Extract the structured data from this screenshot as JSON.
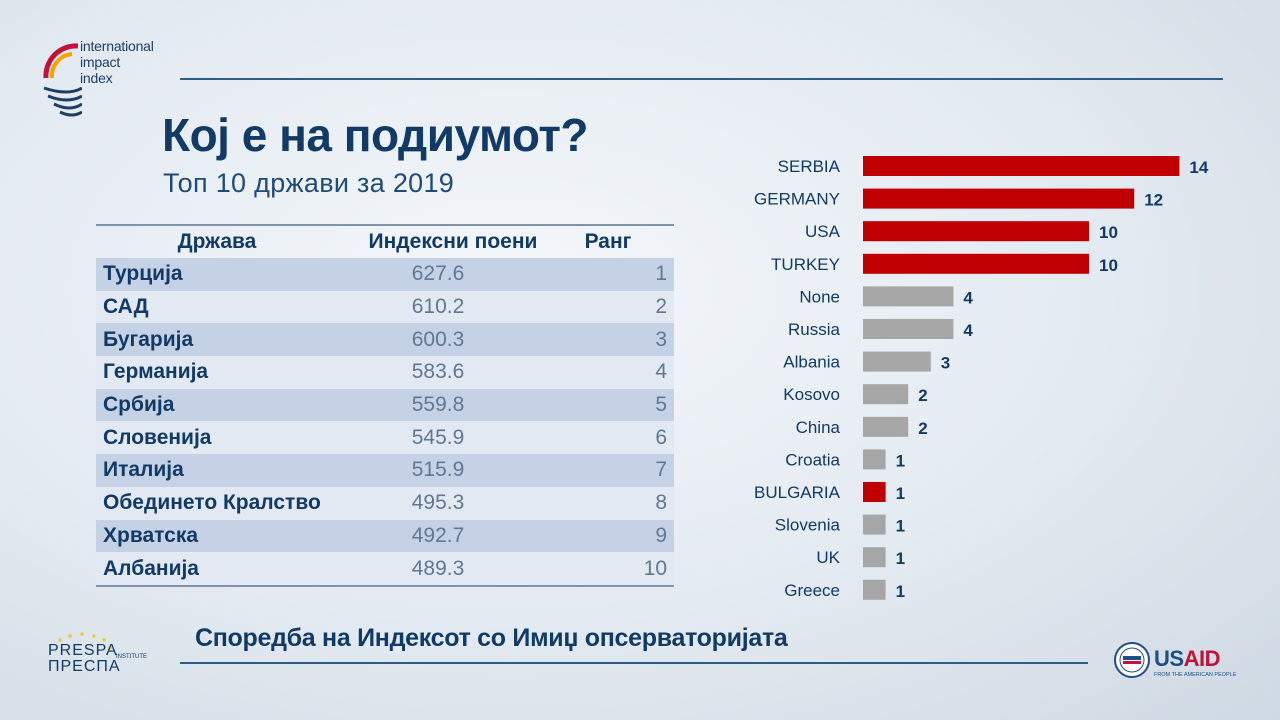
{
  "brand": {
    "logo_lines": [
      "international",
      "impact",
      "index"
    ],
    "presp_lines": [
      "PRESPA",
      "ПРЕСПА"
    ],
    "presp_sub": "INSTITUTE",
    "usaid_name_1": "US",
    "usaid_name_2": "AID",
    "usaid_tagline": "FROM THE AMERICAN PEOPLE"
  },
  "header": {
    "title": "Кој е на подиумот?",
    "subtitle": "Топ 10 држави за 2019"
  },
  "table": {
    "headers": [
      "Држава",
      "Индексни поени",
      "Ранг"
    ],
    "rows": [
      {
        "country": "Турција",
        "points": "627.6",
        "rank": "1"
      },
      {
        "country": "САД",
        "points": "610.2",
        "rank": "2"
      },
      {
        "country": "Бугарија",
        "points": "600.3",
        "rank": "3"
      },
      {
        "country": "Германија",
        "points": "583.6",
        "rank": "4"
      },
      {
        "country": "Србија",
        "points": "559.8",
        "rank": "5"
      },
      {
        "country": "Словенија",
        "points": "545.9",
        "rank": "6"
      },
      {
        "country": "Италија",
        "points": "515.9",
        "rank": "7"
      },
      {
        "country": "Обединето Кралство",
        "points": "495.3",
        "rank": "8"
      },
      {
        "country": "Хрватска",
        "points": "492.7",
        "rank": "9"
      },
      {
        "country": "Албанија",
        "points": "489.3",
        "rank": "10"
      }
    ]
  },
  "footer": {
    "text": "Споредба на Индексот со Имиџ опсерваторијата"
  },
  "colors": {
    "highlight": "#c00000",
    "neutral": "#a6a6a6",
    "label": "#123a66"
  },
  "chart_data": {
    "type": "bar",
    "orientation": "horizontal",
    "categories": [
      "SERBIA",
      "GERMANY",
      "USA",
      "TURKEY",
      "None",
      "Russia",
      "Albania",
      "Kosovo",
      "China",
      "Croatia",
      "BULGARIA",
      "Slovenia",
      "UK",
      "Greece"
    ],
    "values": [
      14,
      12,
      10,
      10,
      4,
      4,
      3,
      2,
      2,
      1,
      1,
      1,
      1,
      1
    ],
    "highlighted": [
      true,
      true,
      true,
      true,
      false,
      false,
      false,
      false,
      false,
      false,
      true,
      false,
      false,
      false
    ],
    "title": "",
    "xlabel": "",
    "ylabel": "",
    "xlim": [
      0,
      14
    ],
    "grid": false,
    "data_labels": true
  }
}
